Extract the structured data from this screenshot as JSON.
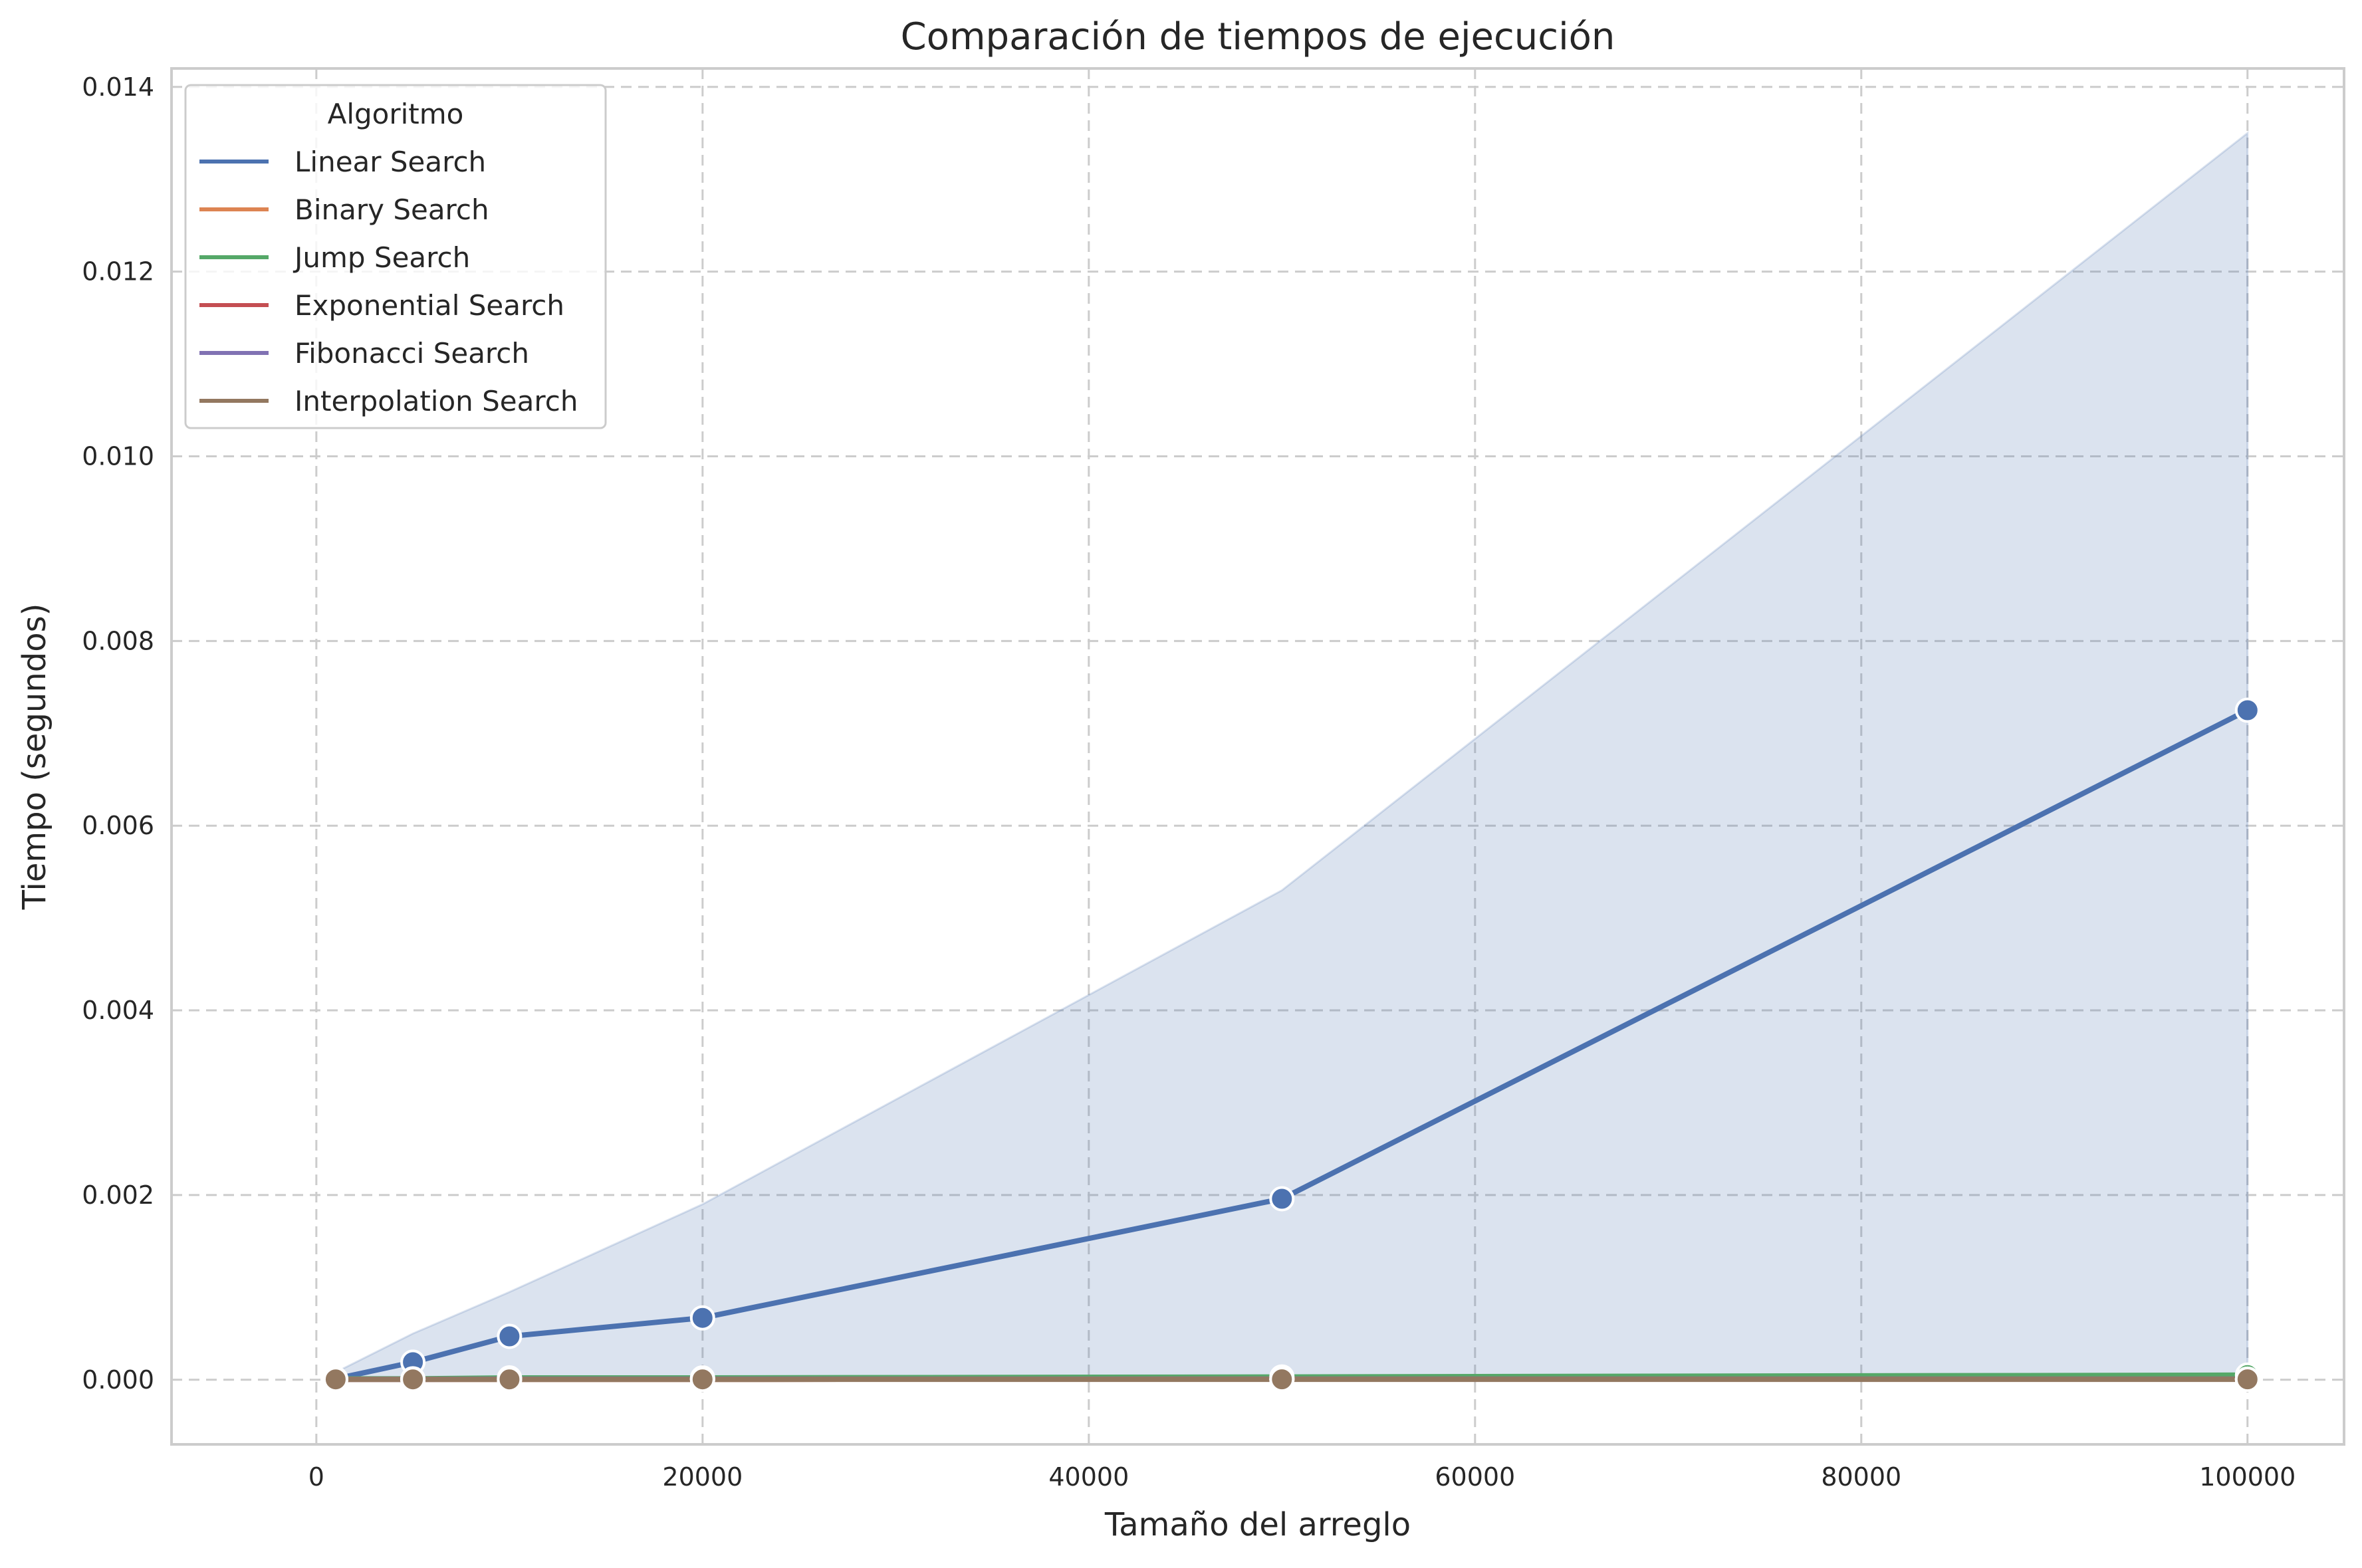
{
  "chart_data": {
    "type": "line",
    "title": "Comparación de tiempos de ejecución",
    "xlabel": "Tamaño del arreglo",
    "ylabel": "Tiempo (segundos)",
    "xlim": [
      -7500,
      105000
    ],
    "ylim": [
      -0.0007,
      0.0142
    ],
    "xticks": [
      0,
      20000,
      40000,
      60000,
      80000,
      100000
    ],
    "xtick_labels": [
      "0",
      "20000",
      "40000",
      "60000",
      "80000",
      "100000"
    ],
    "yticks": [
      0.0,
      0.002,
      0.004,
      0.006,
      0.008,
      0.01,
      0.012,
      0.014
    ],
    "ytick_labels": [
      "0.000",
      "0.002",
      "0.004",
      "0.006",
      "0.008",
      "0.010",
      "0.012",
      "0.014"
    ],
    "grid": true,
    "legend": {
      "title": "Algoritmo",
      "placement": "top-left"
    },
    "x": [
      1000,
      5000,
      10000,
      20000,
      50000,
      100000
    ],
    "series": [
      {
        "name": "Linear Search",
        "color": "#4c72b0",
        "values": [
          1e-05,
          0.00019,
          0.00047,
          0.00067,
          0.00196,
          0.00725
        ],
        "band_low": [
          0.0,
          0.0,
          0.0,
          0.0,
          0.0,
          0.0
        ],
        "band_high": [
          8e-05,
          0.0005,
          0.00095,
          0.0019,
          0.0053,
          0.0135
        ]
      },
      {
        "name": "Binary Search",
        "color": "#dd8452",
        "values": [
          5e-06,
          5e-06,
          5e-06,
          5e-06,
          6e-06,
          6e-06
        ]
      },
      {
        "name": "Jump Search",
        "color": "#55a868",
        "values": [
          1e-05,
          1e-05,
          2e-05,
          2e-05,
          3e-05,
          5e-05
        ]
      },
      {
        "name": "Exponential Search",
        "color": "#c44e52",
        "values": [
          5e-06,
          5e-06,
          5e-06,
          5e-06,
          6e-06,
          6e-06
        ]
      },
      {
        "name": "Fibonacci Search",
        "color": "#8172b3",
        "values": [
          5e-06,
          5e-06,
          6e-06,
          6e-06,
          6e-06,
          6e-06
        ]
      },
      {
        "name": "Interpolation Search",
        "color": "#937860",
        "values": [
          4e-06,
          4e-06,
          4e-06,
          4e-06,
          5e-06,
          5e-06
        ]
      }
    ]
  }
}
